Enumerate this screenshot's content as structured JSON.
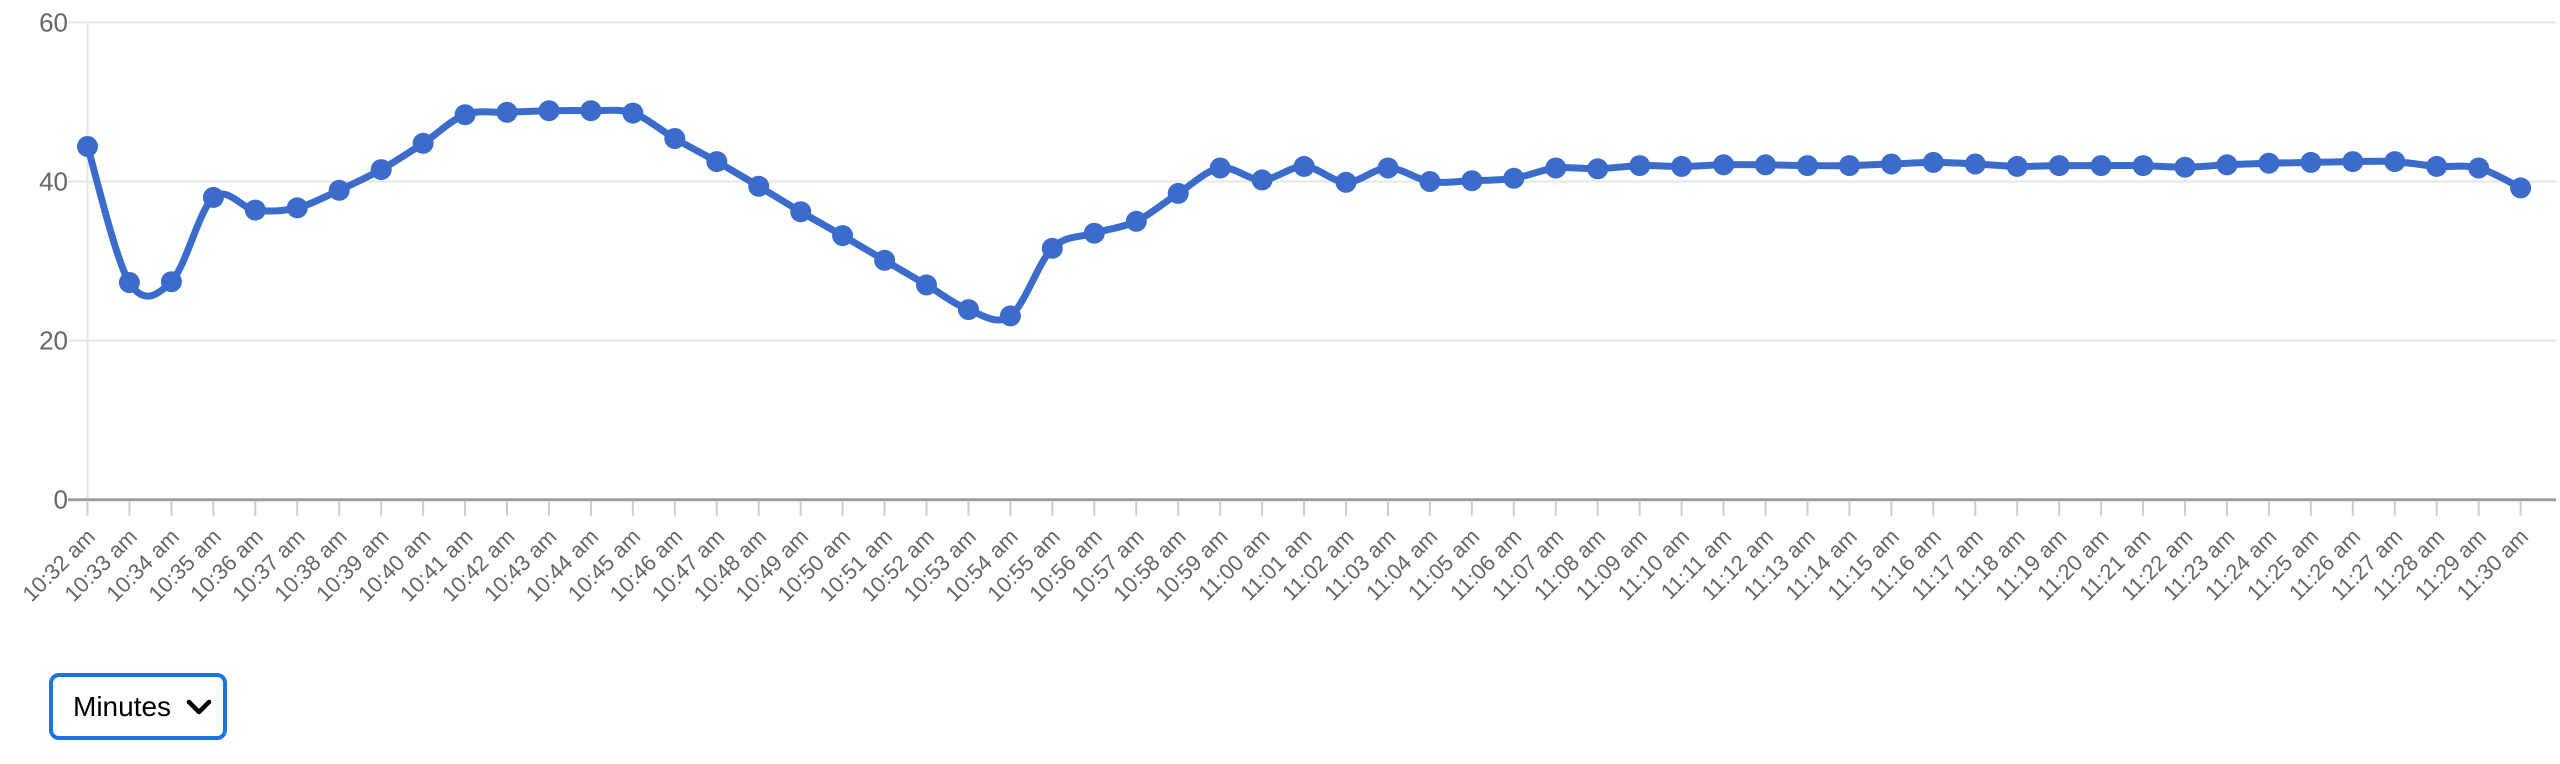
{
  "chart_data": {
    "type": "line",
    "title": "",
    "xlabel": "",
    "ylabel": "",
    "legend": "none",
    "grid": true,
    "smoothing": true,
    "point_markers": true,
    "x_label_rotation": 45,
    "ylim": [
      0,
      60
    ],
    "yticks": [
      0,
      20,
      40,
      60
    ],
    "ytick_labels": [
      "0",
      "20",
      "40",
      "60"
    ],
    "x": [
      "10:32 am",
      "10:33 am",
      "10:34 am",
      "10:35 am",
      "10:36 am",
      "10:37 am",
      "10:38 am",
      "10:39 am",
      "10:40 am",
      "10:41 am",
      "10:42 am",
      "10:43 am",
      "10:44 am",
      "10:45 am",
      "10:46 am",
      "10:47 am",
      "10:48 am",
      "10:49 am",
      "10:50 am",
      "10:51 am",
      "10:52 am",
      "10:53 am",
      "10:54 am",
      "10:55 am",
      "10:56 am",
      "10:57 am",
      "10:58 am",
      "10:59 am",
      "11:00 am",
      "11:01 am",
      "11:02 am",
      "11:03 am",
      "11:04 am",
      "11:05 am",
      "11:06 am",
      "11:07 am",
      "11:08 am",
      "11:09 am",
      "11:10 am",
      "11:11 am",
      "11:12 am",
      "11:13 am",
      "11:14 am",
      "11:15 am",
      "11:16 am",
      "11:17 am",
      "11:18 am",
      "11:19 am",
      "11:20 am",
      "11:21 am",
      "11:22 am",
      "11:23 am",
      "11:24 am",
      "11:25 am",
      "11:26 am",
      "11:27 am",
      "11:28 am",
      "11:29 am",
      "11:30 am"
    ],
    "values": [
      44.4,
      27.3,
      27.4,
      38.0,
      36.4,
      36.7,
      38.9,
      41.5,
      44.8,
      48.4,
      48.7,
      48.9,
      48.9,
      48.6,
      45.4,
      42.5,
      39.4,
      36.2,
      33.2,
      30.1,
      27.0,
      23.9,
      23.1,
      31.6,
      33.5,
      35.0,
      38.5,
      41.7,
      40.2,
      41.9,
      39.9,
      41.7,
      40.0,
      40.1,
      40.4,
      41.7,
      41.6,
      42.0,
      41.9,
      42.1,
      42.1,
      42.0,
      42.0,
      42.2,
      42.4,
      42.2,
      41.9,
      42.0,
      42.0,
      42.0,
      41.8,
      42.1,
      42.3,
      42.4,
      42.5,
      42.5,
      41.9,
      41.7,
      39.2
    ],
    "colors": {
      "series": "#3B6CCB",
      "gridline": "#E6E6E6",
      "baseline": "#9E9E9E",
      "tick": "#CCCCCC",
      "axis_label": "#666666"
    }
  },
  "controls": {
    "interval_select": {
      "value": "Minutes",
      "options": [
        "Minutes"
      ],
      "focus_ring_color": "#1A73E8"
    }
  }
}
